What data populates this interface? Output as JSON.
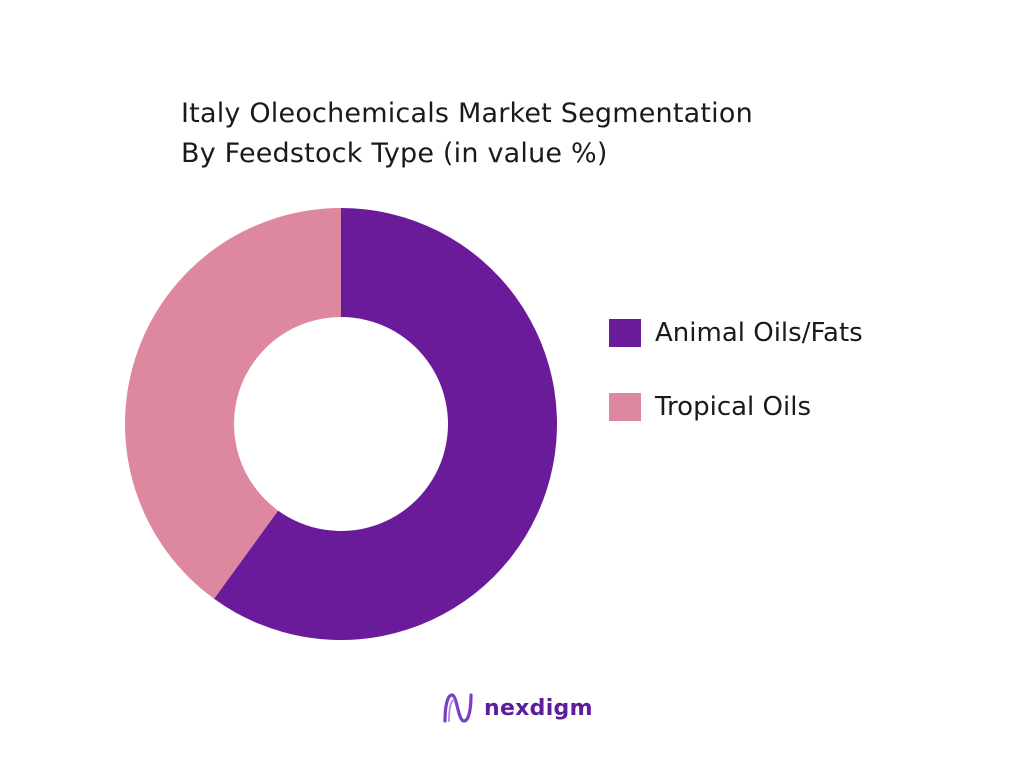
{
  "chart_data": {
    "type": "pie",
    "variant": "donut",
    "title_line1": "Italy Oleochemicals Market Segmentation",
    "title_line2": "By Feedstock Type (in value %)",
    "unit": "%",
    "categories": [
      "Animal Oils/Fats",
      "Tropical Oils"
    ],
    "values": [
      60,
      40
    ],
    "colors": [
      "#6a1b9a",
      "#de889f"
    ],
    "legend_position": "right",
    "start_angle": "12 o'clock, clockwise"
  },
  "brand": {
    "name": "nexdigm",
    "logo_color": "#5b1d99"
  }
}
